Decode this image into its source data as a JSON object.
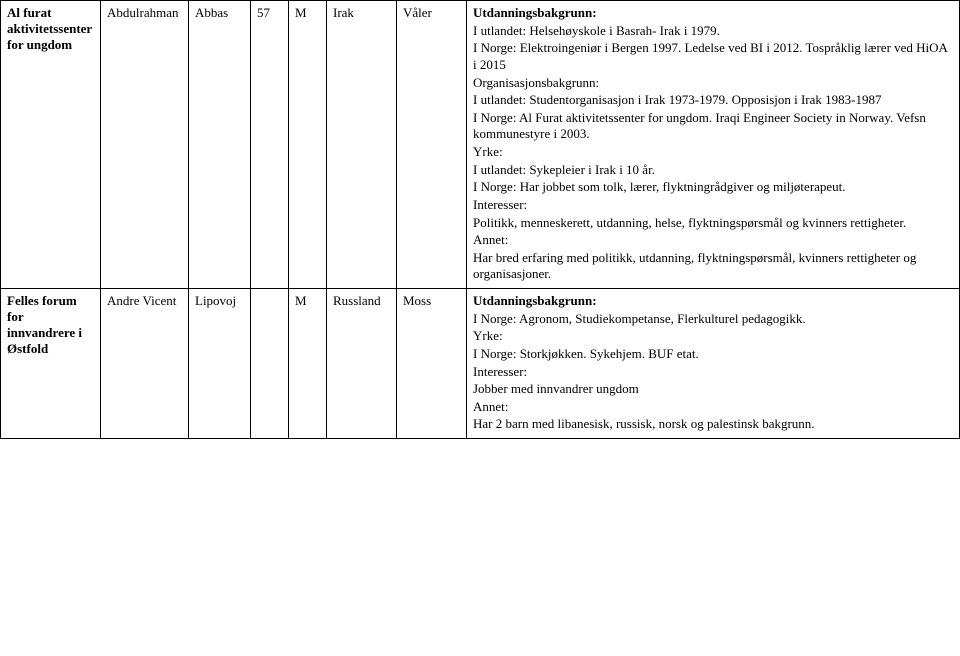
{
  "rows": [
    {
      "org": "Al furat aktivitetssenter for ungdom",
      "first": "Abdulrahman",
      "last": "Abbas",
      "age": "57",
      "sex": "M",
      "country": "Irak",
      "municipality": "Våler",
      "desc": {
        "utd_label": "Utdanningsbakgrunn:",
        "utd1": "I utlandet: Helsehøyskole i Basrah- Irak i 1979.",
        "utd2": "I Norge: Elektroingeniør i Bergen 1997. Ledelse ved BI i 2012. Tospråklig lærer ved HiOA i 2015",
        "org_label": "Organisasjonsbakgrunn:",
        "org1": "I utlandet: Studentorganisasjon i Irak 1973-1979. Opposisjon i Irak 1983-1987",
        "org2": "I Norge: Al Furat aktivitetssenter for ungdom. Iraqi Engineer Society in Norway. Vefsn kommunestyre i 2003.",
        "yrke_label": "Yrke:",
        "yrke1": "I utlandet: Sykepleier i Irak i 10 år.",
        "yrke2": "I Norge: Har jobbet som tolk, lærer, flyktningrådgiver og miljøterapeut.",
        "int_label": "Interesser:",
        "int1": "Politikk, menneskerett, utdanning, helse, flyktningspørsmål og kvinners rettigheter.",
        "annet_label": "Annet:",
        "annet1": "Har bred erfaring med politikk, utdanning, flyktningspørsmål, kvinners rettigheter og organisasjoner."
      }
    },
    {
      "org": "Felles forum for innvandrere i Østfold",
      "first": "Andre Vicent",
      "last": "Lipovoj",
      "age": "",
      "sex": "M",
      "country": "Russland",
      "municipality": "Moss",
      "desc": {
        "utd_label": "Utdanningsbakgrunn:",
        "utd2": "I Norge: Agronom, Studiekompetanse, Flerkulturel pedagogikk.",
        "yrke_label": "Yrke:",
        "yrke2": "I Norge: Storkjøkken. Sykehjem. BUF etat.",
        "int_label": "Interesser:",
        "int1": "Jobber med innvandrer ungdom",
        "annet_label": "Annet:",
        "annet1": "Har 2 barn med libanesisk, russisk, norsk og palestinsk bakgrunn."
      }
    }
  ]
}
